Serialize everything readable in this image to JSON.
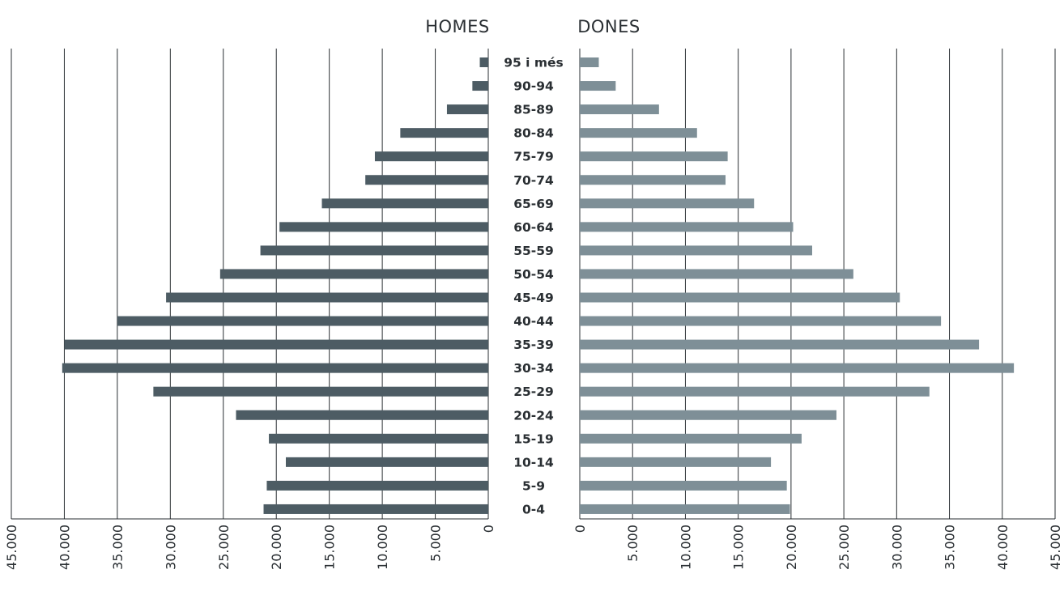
{
  "chart_data": {
    "type": "bar",
    "orientation": "horizontal",
    "categories": [
      "95 i més",
      "90-94",
      "85-89",
      "80-84",
      "75-79",
      "70-74",
      "65-69",
      "60-64",
      "55-59",
      "50-54",
      "45-49",
      "40-44",
      "35-39",
      "30-34",
      "25-29",
      "20-24",
      "15-19",
      "10-14",
      "5-9",
      "0-4"
    ],
    "series": [
      {
        "name": "HOMES",
        "color": "#4d5c64",
        "values": [
          800,
          1500,
          3900,
          8300,
          10700,
          11600,
          15700,
          19700,
          21500,
          25300,
          30400,
          35000,
          40000,
          40200,
          31600,
          23800,
          20700,
          19100,
          20900,
          21200
        ]
      },
      {
        "name": "DONES",
        "color": "#7e8f97",
        "values": [
          1800,
          3400,
          7500,
          11100,
          14000,
          13800,
          16500,
          20200,
          22000,
          25900,
          30300,
          34200,
          37800,
          41100,
          33100,
          24300,
          21000,
          18100,
          19600,
          19900
        ]
      }
    ],
    "xlim": [
      0,
      45000
    ],
    "x_ticks": [
      "0",
      "5.000",
      "10.000",
      "15.000",
      "20.000",
      "25.000",
      "30.000",
      "35.000",
      "40.000",
      "45.000"
    ],
    "grid": true,
    "legend": "top"
  }
}
